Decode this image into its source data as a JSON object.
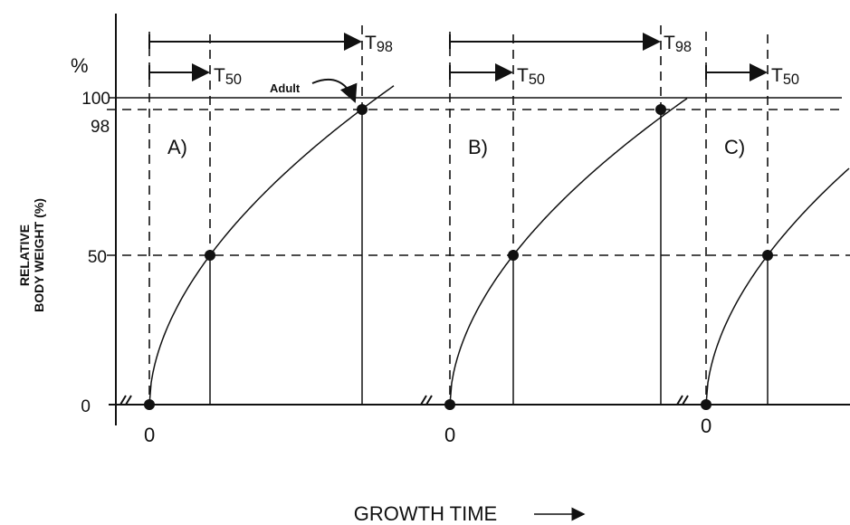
{
  "y_axis": {
    "unit": "%",
    "label_lines": [
      "RELATIVE",
      "BODY WEIGHT (%)"
    ],
    "ticks": [
      "100",
      "98",
      "50",
      "0"
    ]
  },
  "x_axis": {
    "label": "GROWTH TIME"
  },
  "annotation": "Adult",
  "panels": [
    {
      "label": "A)",
      "origin": "0",
      "t50": {
        "letter": "T",
        "sub": "50"
      },
      "t98": {
        "letter": "T",
        "sub": "98"
      }
    },
    {
      "label": "B)",
      "origin": "0",
      "t50": {
        "letter": "T",
        "sub": "50"
      },
      "t98": {
        "letter": "T",
        "sub": "98"
      }
    },
    {
      "label": "C)",
      "origin": "0",
      "t50": {
        "letter": "T",
        "sub": "50"
      }
    }
  ]
}
